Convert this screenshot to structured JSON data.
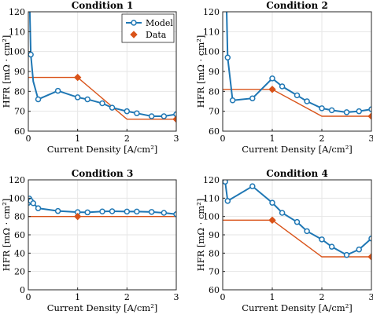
{
  "colors": {
    "model": "#1f77b4",
    "data": "#d95319",
    "grid": "#e6e6e6",
    "axis": "#262626"
  },
  "chart_data": [
    {
      "type": "line",
      "title": "Condition 1",
      "xlabel": "Current Density [A/cm²]",
      "ylabel": "HFR [mΩ · cm²]",
      "xlim": [
        0,
        3
      ],
      "ylim": [
        60,
        120
      ],
      "xticks": [
        "0",
        "1",
        "2",
        "3"
      ],
      "yticks": [
        "60",
        "70",
        "80",
        "90",
        "100",
        "110",
        "120"
      ],
      "grid": true,
      "legend": {
        "position": "top-right",
        "entries": [
          "Model",
          "Data"
        ]
      },
      "series": [
        {
          "name": "Model",
          "style": "line-markers",
          "x": [
            0.03,
            0.05,
            0.1,
            0.2,
            0.6,
            1.0,
            1.2,
            1.5,
            1.7,
            2.0,
            2.2,
            2.5,
            2.75,
            3.0
          ],
          "y": [
            120,
            98.5,
            85,
            76,
            80.3,
            77,
            76,
            74,
            71.8,
            70,
            69,
            67.5,
            67.5,
            68.5
          ],
          "markers": [
            false,
            true,
            false,
            true,
            true,
            true,
            true,
            true,
            true,
            true,
            true,
            true,
            true,
            true
          ]
        },
        {
          "name": "Data",
          "style": "markers",
          "x": [
            1,
            3
          ],
          "y": [
            87,
            66
          ]
        },
        {
          "name": "",
          "style": "line",
          "x": [
            0,
            1,
            2,
            3
          ],
          "y": [
            87,
            87,
            66,
            66
          ]
        }
      ]
    },
    {
      "type": "line",
      "title": "Condition 2",
      "xlabel": "Current Density [A/cm²]",
      "ylabel": "HFR [mΩ · cm²]",
      "xlim": [
        0,
        3
      ],
      "ylim": [
        60,
        120
      ],
      "xticks": [
        "0",
        "1",
        "2",
        "3"
      ],
      "yticks": [
        "60",
        "70",
        "80",
        "90",
        "100",
        "110",
        "120"
      ],
      "grid": true,
      "series": [
        {
          "name": "Model",
          "style": "line-markers",
          "x": [
            0.08,
            0.1,
            0.2,
            0.6,
            1.0,
            1.2,
            1.5,
            1.7,
            2.0,
            2.2,
            2.5,
            2.75,
            3.0
          ],
          "y": [
            120,
            97,
            75.5,
            76.5,
            86.5,
            82.5,
            78,
            75,
            71.5,
            70.5,
            69.5,
            70,
            71
          ],
          "markers": [
            false,
            true,
            true,
            true,
            true,
            true,
            true,
            true,
            true,
            true,
            true,
            true,
            true
          ]
        },
        {
          "name": "Data",
          "style": "markers",
          "x": [
            1,
            3
          ],
          "y": [
            81,
            67.5
          ]
        },
        {
          "name": "",
          "style": "line",
          "x": [
            0,
            1,
            2,
            3
          ],
          "y": [
            81,
            81,
            67.5,
            67.5
          ]
        }
      ]
    },
    {
      "type": "line",
      "title": "Condition 3",
      "xlabel": "Current Density [A/cm²]",
      "ylabel": "HFR [mΩ · cm²]",
      "xlim": [
        0,
        3
      ],
      "ylim": [
        0,
        120
      ],
      "xticks": [
        "0",
        "1",
        "2",
        "3"
      ],
      "yticks": [
        "0",
        "20",
        "40",
        "60",
        "80",
        "100",
        "120"
      ],
      "grid": true,
      "series": [
        {
          "name": "Model",
          "style": "line-markers",
          "x": [
            0.0,
            0.02,
            0.05,
            0.1,
            0.2,
            0.6,
            1.0,
            1.2,
            1.5,
            1.7,
            2.0,
            2.2,
            2.5,
            2.75,
            3.0
          ],
          "y": [
            95,
            99.5,
            97,
            94.5,
            89,
            86,
            84.7,
            84.5,
            85.5,
            85.7,
            85.4,
            85.4,
            85,
            84,
            82.5
          ],
          "markers": [
            true,
            true,
            true,
            true,
            true,
            true,
            true,
            true,
            true,
            true,
            true,
            true,
            true,
            true,
            true
          ]
        },
        {
          "name": "Data",
          "style": "markers",
          "x": [
            1
          ],
          "y": [
            80
          ]
        },
        {
          "name": "",
          "style": "line",
          "x": [
            0,
            3
          ],
          "y": [
            80,
            80
          ]
        }
      ]
    },
    {
      "type": "line",
      "title": "Condition 4",
      "xlabel": "Current Density [A/cm²]",
      "ylabel": "HFR [mΩ · cm²]",
      "xlim": [
        0,
        3
      ],
      "ylim": [
        60,
        120
      ],
      "xticks": [
        "0",
        "1",
        "2",
        "3"
      ],
      "yticks": [
        "60",
        "70",
        "80",
        "90",
        "100",
        "110",
        "120"
      ],
      "grid": true,
      "series": [
        {
          "name": "Model",
          "style": "line-markers",
          "x": [
            0.05,
            0.1,
            0.6,
            1.0,
            1.2,
            1.5,
            1.7,
            2.0,
            2.2,
            2.5,
            2.75,
            3.0
          ],
          "y": [
            119,
            108.5,
            116.5,
            107.5,
            102,
            97,
            92,
            87.5,
            83.5,
            79,
            82,
            88
          ],
          "markers": [
            true,
            true,
            true,
            true,
            true,
            true,
            true,
            true,
            true,
            true,
            true,
            true
          ]
        },
        {
          "name": "Data",
          "style": "markers",
          "x": [
            1,
            3
          ],
          "y": [
            98,
            78
          ]
        },
        {
          "name": "",
          "style": "line",
          "x": [
            0,
            1,
            2,
            3
          ],
          "y": [
            98,
            98,
            78,
            78
          ]
        }
      ]
    }
  ]
}
